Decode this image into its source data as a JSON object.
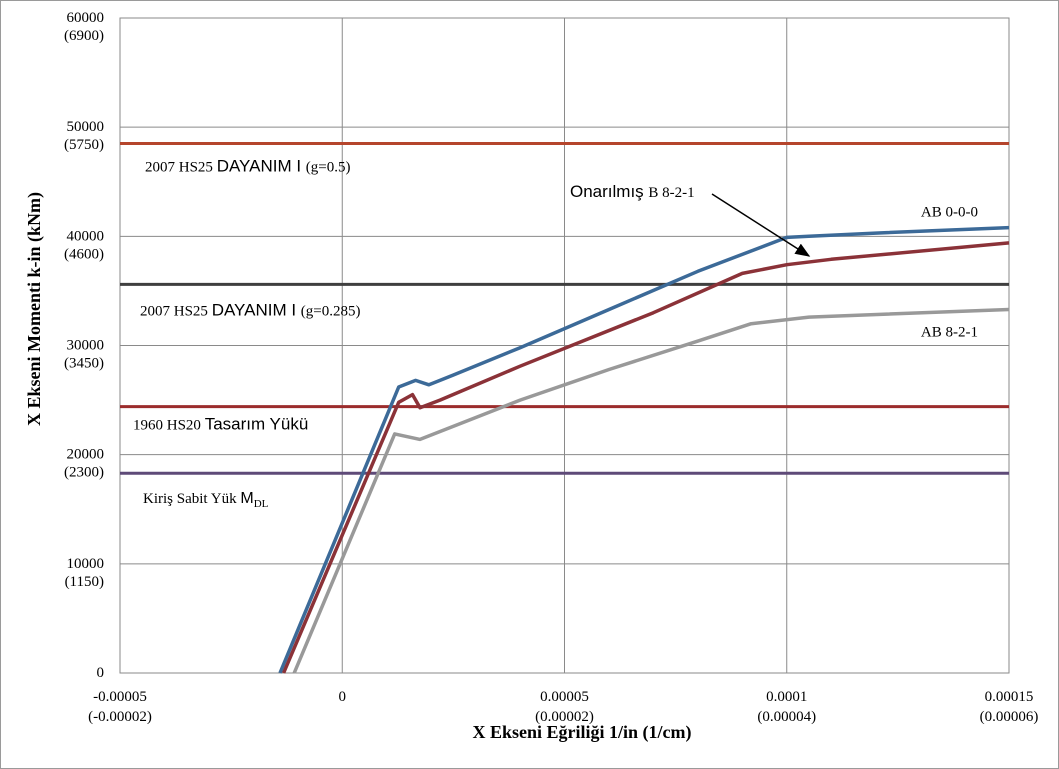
{
  "chart_data": {
    "type": "line",
    "xlabel": "X Ekseni Eğriliği 1/in (1/cm)",
    "ylabel": "X Ekseni Momenti k-in (kNm)",
    "xlim": [
      -5e-05,
      0.00015
    ],
    "ylim": [
      0,
      60000
    ],
    "grid": true,
    "x_ticks": [
      {
        "value": -5e-05,
        "label": "-0.00005",
        "sub": "(-0.00002)"
      },
      {
        "value": 0,
        "label": "0",
        "sub": ""
      },
      {
        "value": 5e-05,
        "label": "0.00005",
        "sub": "(0.00002)"
      },
      {
        "value": 0.0001,
        "label": "0.0001",
        "sub": "(0.00004)"
      },
      {
        "value": 0.00015,
        "label": "0.00015",
        "sub": "(0.00006)"
      }
    ],
    "y_ticks": [
      {
        "value": 0,
        "label": "0",
        "sub": ""
      },
      {
        "value": 10000,
        "label": "10000",
        "sub": "(1150)"
      },
      {
        "value": 20000,
        "label": "20000",
        "sub": "(2300)"
      },
      {
        "value": 30000,
        "label": "30000",
        "sub": "(3450)"
      },
      {
        "value": 40000,
        "label": "40000",
        "sub": "(4600)"
      },
      {
        "value": 50000,
        "label": "50000",
        "sub": "(5750)"
      },
      {
        "value": 60000,
        "label": "60000",
        "sub": "(6900)"
      }
    ],
    "reference_lines": [
      {
        "name": "2007 HS25 DAYANIM I (g=0.5)",
        "y": 48500,
        "color": "#b5452c",
        "label_a": "2007 HS25 ",
        "label_b": "DAYANIM I ",
        "label_c": "(g=0.5)"
      },
      {
        "name": "2007 HS25 DAYANIM I (g=0.285)",
        "y": 35600,
        "color": "#3f3f3f",
        "label_a": "2007 HS25 ",
        "label_b": "DAYANIM I ",
        "label_c": "(g=0.285)"
      },
      {
        "name": "1960 HS20 Tasarım Yükü",
        "y": 24400,
        "color": "#9b2c2c",
        "label_a": "1960 HS20 ",
        "label_b": "Tasarım Yükü",
        "label_c": ""
      },
      {
        "name": "Kiriş Sabit Yük M_DL",
        "y": 18300,
        "color": "#5e4a78",
        "label_a": "Kiriş Sabit Yük ",
        "label_b": "M",
        "label_c": "DL"
      }
    ],
    "series": [
      {
        "name": "AB 0-0-0",
        "color": "#3c6a98",
        "x": [
          -1.4e-05,
          1.27e-05,
          1.65e-05,
          1.95e-05,
          2.5e-05,
          4e-05,
          6e-05,
          8e-05,
          0.0001,
          0.000105,
          0.00012,
          0.00015
        ],
        "y": [
          0,
          26200,
          26800,
          26400,
          27300,
          29800,
          33300,
          36800,
          39900,
          40000,
          40300,
          40800
        ]
      },
      {
        "name": "Onarılmış B 8-2-1",
        "color": "#8b3238",
        "x": [
          -1.32e-05,
          1.27e-05,
          1.58e-05,
          1.75e-05,
          2.2e-05,
          4e-05,
          7e-05,
          9e-05,
          0.0001,
          0.00011,
          0.00015
        ],
        "y": [
          0,
          24800,
          25500,
          24300,
          25000,
          28100,
          33000,
          36600,
          37400,
          37900,
          39400
        ]
      },
      {
        "name": "AB 8-2-1",
        "color": "#999999",
        "x": [
          -1.08e-05,
          1.18e-05,
          1.75e-05,
          4e-05,
          6e-05,
          8e-05,
          9.2e-05,
          0.000105,
          0.00015
        ],
        "y": [
          0,
          21900,
          21400,
          25000,
          27800,
          30400,
          32000,
          32600,
          33300
        ]
      }
    ],
    "annotations": [
      {
        "text": "AB 0-0-0",
        "series": "AB 0-0-0"
      },
      {
        "text_a": "Onarılmış ",
        "text_b": "B 8-2-1",
        "series": "Onarılmış B 8-2-1",
        "arrow_to": [
          0.000105,
          38200
        ]
      },
      {
        "text": "AB 8-2-1",
        "series": "AB 8-2-1"
      }
    ]
  }
}
